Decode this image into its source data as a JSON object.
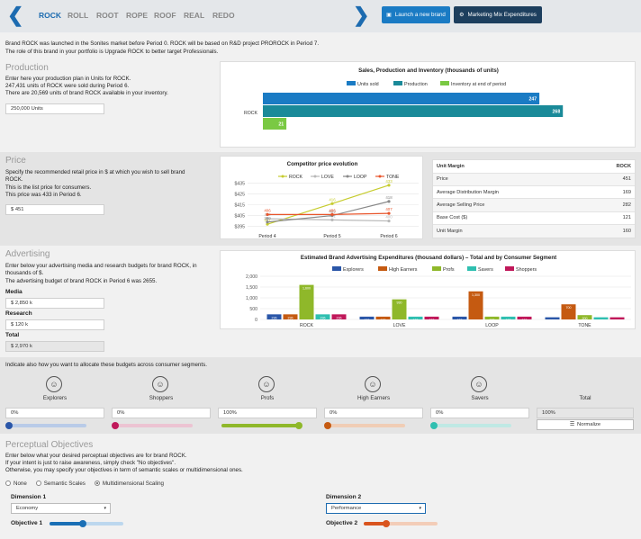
{
  "nav": {
    "brands": [
      "ROCK",
      "ROLL",
      "ROOT",
      "ROPE",
      "ROOF",
      "REAL",
      "REDO"
    ],
    "active": "ROCK",
    "launch_label": "Launch a new brand",
    "mix_label": "Marketing Mix Expenditures",
    "colors": {
      "launch": "#1a7bc4",
      "mix": "#1d3f5e"
    }
  },
  "intro": {
    "line1": "Brand ROCK was launched in the Sonites market before Period 0. ROCK will be based on R&D project PROROCK in Period 7.",
    "line2": "The role of this brand in your portfolio is Upgrade ROCK to better target Professionals."
  },
  "production": {
    "title": "Production",
    "line1": "Enter here your production plan in Units for ROCK.",
    "line2": "247,431 units of ROCK were sold during Period 6.",
    "line3": "There are 20,569 units of brand ROCK available in your inventory.",
    "input": "250,000 Units"
  },
  "prod_chart_data": {
    "type": "bar",
    "title": "Sales, Production and Inventory (thousands of units)",
    "categories": [
      "ROCK"
    ],
    "series": [
      {
        "name": "Units sold",
        "values": [
          247
        ],
        "color": "#1a7bc4"
      },
      {
        "name": "Production",
        "values": [
          268
        ],
        "color": "#1a8a99"
      },
      {
        "name": "Inventory at end of period",
        "values": [
          21
        ],
        "color": "#7ac943"
      }
    ],
    "labels": [
      "247",
      "268",
      "21"
    ],
    "xlim": [
      0,
      300
    ]
  },
  "price": {
    "title": "Price",
    "line1": "Specify the recommended retail price in $ at which you wish to sell brand ROCK.",
    "line2": "This is the list price for consumers.",
    "line3": "This price was 433 in Period 6.",
    "input": "$ 451"
  },
  "price_chart_data": {
    "type": "line",
    "title": "Competitor price evolution",
    "x": [
      "Period 4",
      "Period 5",
      "Period 6"
    ],
    "yticks": [
      "$435",
      "$425",
      "$415",
      "$405",
      "$395"
    ],
    "ylim": [
      393,
      437
    ],
    "series": [
      {
        "name": "ROCK",
        "values": [
          397,
          416,
          433
        ],
        "labels": [
          "397",
          "416",
          "433"
        ],
        "color": "#c6cc2e"
      },
      {
        "name": "LOVE",
        "values": [
          402,
          401,
          400
        ],
        "labels": [
          "402",
          "401",
          "400"
        ],
        "color": "#b8b8b8"
      },
      {
        "name": "LOOP",
        "values": [
          399,
          405,
          418
        ],
        "labels": [
          "399",
          "405",
          "418"
        ],
        "color": "#888888"
      },
      {
        "name": "TONE",
        "values": [
          406,
          406,
          407
        ],
        "labels": [
          "406",
          "406",
          "407"
        ],
        "color": "#e8552b"
      }
    ]
  },
  "unit_margin": {
    "header": [
      "Unit Margin",
      "ROCK"
    ],
    "rows": [
      [
        "Price",
        "451"
      ],
      [
        "Average Distribution Margin",
        "169"
      ],
      [
        "Average Selling Price",
        "282"
      ],
      [
        "Base Cost ($)",
        "121"
      ],
      [
        "Unit Margin",
        "160"
      ]
    ]
  },
  "advertising": {
    "title": "Advertising",
    "line1": "Enter below your advertising media and research budgets for brand ROCK, in thousands of $.",
    "line2": "The advertising budget of brand ROCK in Period 6 was 2655.",
    "media_label": "Media",
    "media_value": "$ 2,850 k",
    "research_label": "Research",
    "research_value": "$ 120 k",
    "total_label": "Total",
    "total_value": "$ 2,970 k"
  },
  "adv_chart_data": {
    "type": "bar",
    "title": "Estimated Brand Advertising Expenditures (thousand dollars) – Total and by Consumer Segment",
    "categories": [
      "ROCK",
      "LOVE",
      "LOOP",
      "TONE"
    ],
    "yticks": [
      "2,000",
      "1,500",
      "1,000",
      "500",
      "0"
    ],
    "ylim": [
      0,
      2000
    ],
    "series": [
      {
        "name": "Explorers",
        "values": [
          236,
          130,
          130,
          100
        ],
        "color": "#2a56a8"
      },
      {
        "name": "High Earners",
        "values": [
          236,
          130,
          1300,
          700
        ],
        "color": "#c55a11"
      },
      {
        "name": "Profs",
        "values": [
          1600,
          930,
          130,
          200
        ],
        "color": "#8fb82a"
      },
      {
        "name": "Savers",
        "values": [
          236,
          130,
          130,
          100
        ],
        "color": "#2fbfb0"
      },
      {
        "name": "Shoppers",
        "values": [
          236,
          130,
          130,
          100
        ],
        "color": "#c0185a"
      }
    ],
    "labels": [
      [
        "236",
        "236",
        "1,600",
        "236",
        "236"
      ],
      [
        "130",
        "130",
        "930",
        "130",
        "130"
      ],
      [
        "130",
        "1,300",
        "130",
        "130",
        "130"
      ],
      [
        "100",
        "700",
        "200",
        "100",
        "100"
      ]
    ]
  },
  "allocation": {
    "intro": "Indicate also how you want to allocate these budgets across consumer segments.",
    "segments": [
      {
        "name": "Explorers",
        "value": "0%",
        "color": "#2a56a8",
        "track": "#b9cbe8",
        "frac": 0
      },
      {
        "name": "Shoppers",
        "value": "0%",
        "color": "#c0185a",
        "track": "#ecc3d2",
        "frac": 0
      },
      {
        "name": "Profs",
        "value": "100%",
        "color": "#8fb82a",
        "track": "#d5e5a8",
        "frac": 1
      },
      {
        "name": "High Earners",
        "value": "0%",
        "color": "#c55a11",
        "track": "#f0cdb5",
        "frac": 0
      },
      {
        "name": "Savers",
        "value": "0%",
        "color": "#2fbfb0",
        "track": "#bfe9e4",
        "frac": 0
      }
    ],
    "total_label": "Total",
    "total_value": "100%",
    "normalize_label": "Normalize"
  },
  "perceptual": {
    "title": "Perceptual Objectives",
    "line1": "Enter below what your desired perceptual objectives are for brand ROCK.",
    "line2": "If your intent is just to raise awareness, simply check \"No objectives\".",
    "line3": "Otherwise, you may specify your objectives in term of semantic scales or multidimensional ones.",
    "options": [
      "None",
      "Semantic Scales",
      "Multidimensional Scaling"
    ],
    "selected": 2,
    "dim1_label": "Dimension 1",
    "dim1_value": "Economy",
    "dim2_label": "Dimension 2",
    "dim2_value": "Performance",
    "obj1_label": "Objective 1",
    "obj1_frac": 0.45,
    "obj2_label": "Objective 2",
    "obj2_frac": 0.3,
    "colors": {
      "obj1": "#1a6fb5",
      "obj2": "#d9541e"
    }
  }
}
